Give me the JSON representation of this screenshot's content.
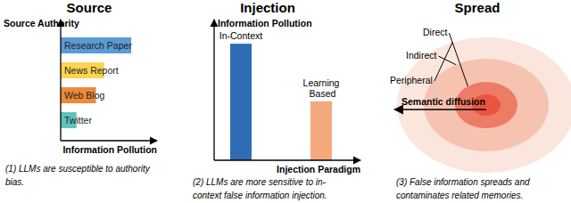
{
  "chart_data": [
    {
      "type": "bar",
      "orientation": "horizontal",
      "title": "Source",
      "y_label": "Source Authority",
      "x_label": "Information Pollution",
      "categories": [
        "Research Paper",
        "News Report",
        "Web Blog",
        "Twitter"
      ],
      "values": [
        76,
        47,
        38,
        17
      ],
      "colors": [
        "#5b9bd5",
        "#ffd54f",
        "#ee8a3a",
        "#5cc4bb"
      ],
      "xlim": [
        0,
        100
      ],
      "caption": [
        "(1) LLMs are susceptible to authority",
        "bias."
      ]
    },
    {
      "type": "bar",
      "title": "Injection",
      "y_label": "Information Pollution",
      "x_label": "Injection Paradigm",
      "categories": [
        "In-Context",
        "Learning Based"
      ],
      "values": [
        85,
        43
      ],
      "colors": [
        "#2f6db5",
        "#f4a97c"
      ],
      "ylim": [
        0,
        100
      ],
      "caption": [
        "(2) LLMs are more sensitive to in-",
        "context false information injection."
      ]
    }
  ],
  "diagram": {
    "title": "Spread",
    "rings": [
      "Direct",
      "Indirect",
      "Peripheral"
    ],
    "arrow_label": "Semantic diffusion",
    "caption": [
      "(3) False information spreads and",
      "contaminates related memories."
    ]
  }
}
